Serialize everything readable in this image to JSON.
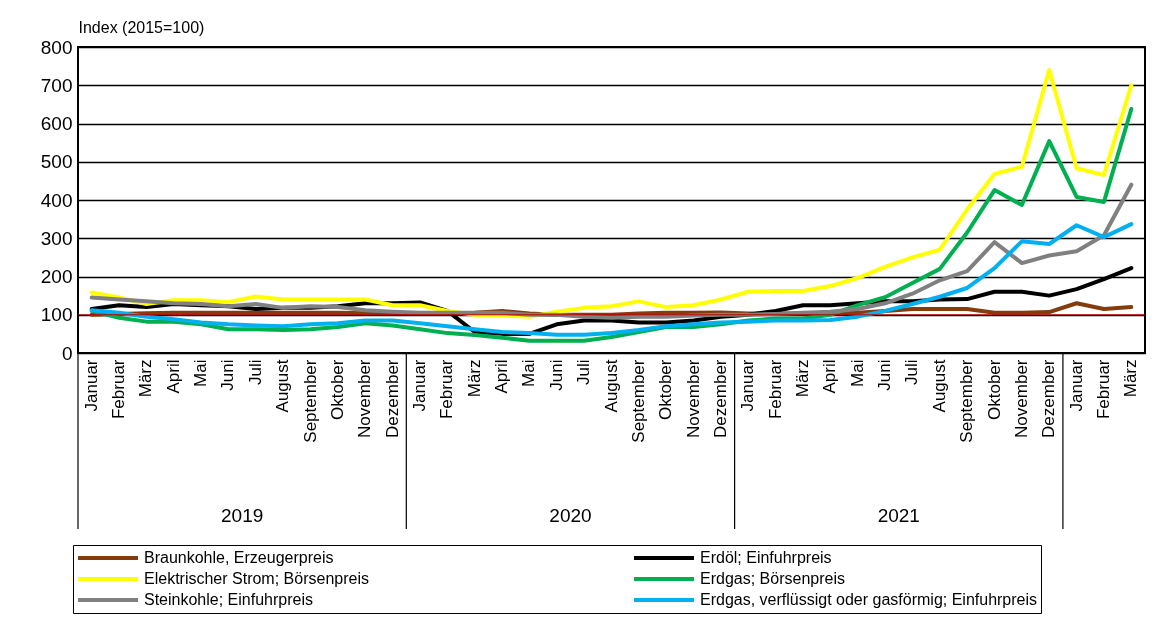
{
  "chart_data": {
    "type": "line",
    "ylabel": "Index (2015=100)",
    "categories": [
      "Januar",
      "Februar",
      "März",
      "April",
      "Mai",
      "Juni",
      "Juli",
      "August",
      "September",
      "Oktober",
      "November",
      "Dezember",
      "Januar",
      "Februar",
      "März",
      "April",
      "Mai",
      "Juni",
      "Juli",
      "August",
      "September",
      "Oktober",
      "November",
      "Dezember",
      "Januar",
      "Februar",
      "März",
      "April",
      "Mai",
      "Juni",
      "Juli",
      "August",
      "September",
      "Oktober",
      "November",
      "Dezember",
      "Januar",
      "Februar",
      "März"
    ],
    "ylim": [
      0,
      800
    ],
    "yticks": [
      0,
      100,
      200,
      300,
      400,
      500,
      600,
      700,
      800
    ],
    "grid": "y",
    "legend": "bottom",
    "marker": "none",
    "line_style": "solid",
    "annotations": [
      "2019",
      "2020",
      "2021"
    ],
    "ref_lines": [
      {
        "axis": "y",
        "value": 100,
        "color": "#c00000"
      }
    ],
    "series": [
      {
        "name": "Braunkohle, Erzeugerpreis",
        "color": "#843c0c",
        "values": [
          100,
          102,
          104,
          105,
          105,
          105,
          105,
          105,
          105,
          105,
          104,
          104,
          103,
          103,
          105,
          110,
          103,
          100,
          100,
          100,
          103,
          105,
          105,
          106,
          103,
          103,
          103,
          103,
          105,
          110,
          115,
          115,
          115,
          105,
          105,
          107,
          130,
          115,
          120
        ]
      },
      {
        "name": "Erdöl; Einfuhrpreis",
        "color": "#000000",
        "values": [
          115,
          125,
          120,
          128,
          125,
          122,
          115,
          118,
          118,
          122,
          130,
          130,
          132,
          110,
          55,
          50,
          50,
          75,
          85,
          85,
          80,
          80,
          85,
          95,
          100,
          110,
          125,
          125,
          130,
          135,
          135,
          140,
          141,
          160,
          160,
          150,
          167,
          193,
          222
        ]
      },
      {
        "name": "Elektrischer Strom; Börsenpreis",
        "color": "#ffff00",
        "values": [
          158,
          145,
          128,
          138,
          138,
          133,
          148,
          140,
          140,
          140,
          140,
          125,
          125,
          110,
          100,
          98,
          95,
          108,
          118,
          122,
          135,
          120,
          125,
          140,
          160,
          162,
          162,
          175,
          196,
          225,
          250,
          270,
          375,
          468,
          487,
          740,
          483,
          465,
          700
        ]
      },
      {
        "name": "Erdgas; Börsenpreis",
        "color": "#00b050",
        "values": [
          110,
          92,
          82,
          82,
          75,
          62,
          62,
          60,
          62,
          68,
          78,
          72,
          62,
          52,
          47,
          40,
          32,
          32,
          32,
          42,
          55,
          68,
          68,
          75,
          85,
          90,
          90,
          100,
          125,
          146,
          183,
          220,
          315,
          426,
          387,
          554,
          408,
          395,
          638
        ]
      },
      {
        "name": "Steinkohle; Einfuhrpreis",
        "color": "#808080",
        "values": [
          145,
          140,
          135,
          130,
          128,
          122,
          128,
          118,
          122,
          120,
          112,
          108,
          105,
          105,
          105,
          105,
          100,
          100,
          95,
          92,
          95,
          95,
          98,
          100,
          100,
          102,
          105,
          108,
          115,
          130,
          155,
          190,
          214,
          290,
          235,
          255,
          266,
          308,
          440
        ]
      },
      {
        "name": "Erdgas, verflüssigt oder gasförmig; Einfuhrpreis",
        "color": "#00b0f0",
        "values": [
          112,
          105,
          95,
          88,
          80,
          75,
          72,
          70,
          75,
          78,
          85,
          85,
          78,
          70,
          62,
          55,
          52,
          48,
          48,
          52,
          60,
          70,
          75,
          80,
          82,
          85,
          85,
          86,
          95,
          110,
          128,
          147,
          170,
          222,
          292,
          285,
          334,
          303,
          337
        ]
      }
    ]
  }
}
